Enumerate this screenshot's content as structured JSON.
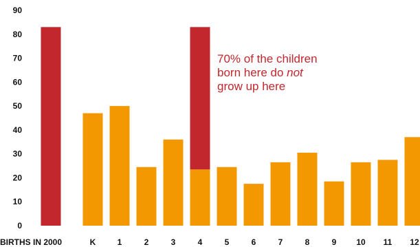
{
  "chart_data": {
    "type": "bar",
    "categories": [
      "BIRTHS IN 2000",
      "K",
      "1",
      "2",
      "3",
      "4",
      "5",
      "6",
      "7",
      "8",
      "9",
      "10",
      "11",
      "12"
    ],
    "values": [
      83,
      47,
      50,
      24.5,
      36,
      23.5,
      24.5,
      17.5,
      26.5,
      30.5,
      18.5,
      26.5,
      27.5,
      37
    ],
    "overlay": {
      "category": "4",
      "from": 23.5,
      "to": 83
    },
    "ylim": [
      0,
      90
    ],
    "yticks": [
      0,
      10,
      20,
      30,
      40,
      50,
      60,
      70,
      80,
      90
    ],
    "xlabel": "",
    "ylabel": "",
    "annotation": {
      "line1": "70% of the children",
      "line2": "born here do ",
      "line2_emphasis": "not",
      "line3": "grow up here"
    },
    "colors": {
      "births": "#c1272d",
      "grade": "#f39800",
      "overlay": "#c1272d",
      "annotation": "#c1272d",
      "axis_text": "#111111"
    }
  }
}
